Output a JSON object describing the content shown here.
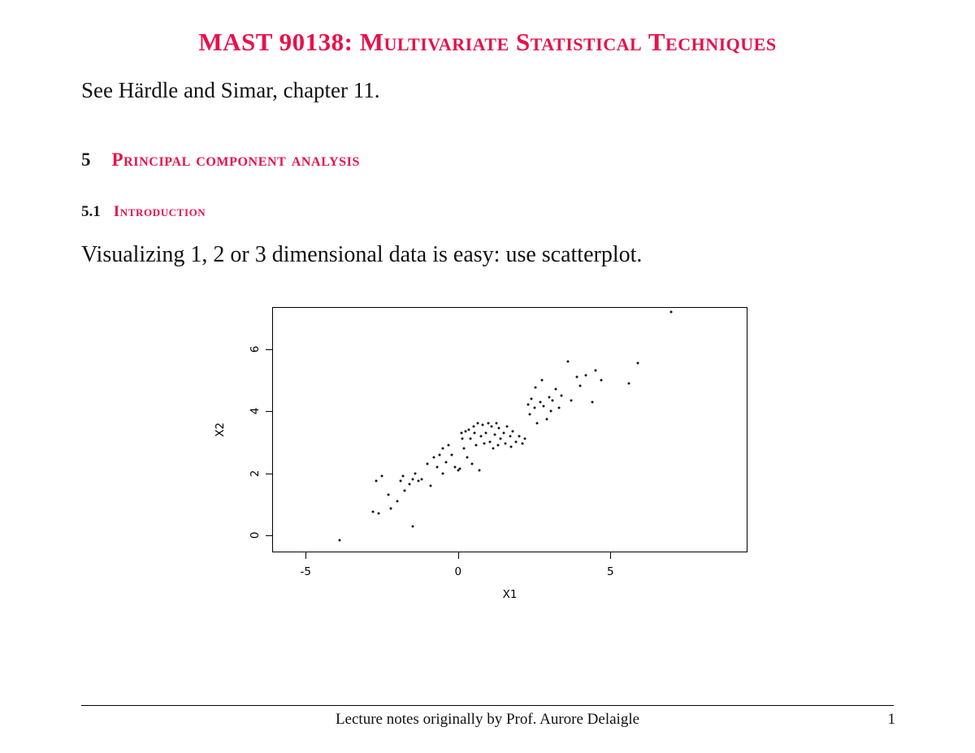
{
  "page": {
    "accent_color": "#e8114b",
    "title": "MAST 90138: Multivariate Statistical Techniques",
    "subtitle": "See Härdle and Simar, chapter 11.",
    "section": {
      "number": "5",
      "title": "Principal component analysis"
    },
    "subsection": {
      "number": "5.1",
      "title": "Introduction"
    },
    "paragraph": "Visualizing 1, 2 or 3 dimensional data is easy: use scatterplot.",
    "footer": {
      "text": "Lecture notes originally by Prof. Aurore Delaigle",
      "page_number": "1"
    }
  },
  "chart_data": {
    "type": "scatter",
    "title": "",
    "xlabel": "X1",
    "ylabel": "X2",
    "xlim": [
      -6.1,
      9.5
    ],
    "ylim": [
      -0.55,
      7.35
    ],
    "x_ticks": [
      -5,
      0,
      5
    ],
    "y_ticks": [
      0,
      2,
      4,
      6
    ],
    "grid": false,
    "legend": "none",
    "points": [
      [
        -3.9,
        -0.15
      ],
      [
        -2.8,
        0.75
      ],
      [
        -2.6,
        0.7
      ],
      [
        -2.7,
        1.75
      ],
      [
        -2.5,
        1.9
      ],
      [
        -2.3,
        1.3
      ],
      [
        -2.2,
        0.85
      ],
      [
        -2.0,
        1.1
      ],
      [
        -1.9,
        1.75
      ],
      [
        -1.8,
        1.9
      ],
      [
        -1.75,
        1.45
      ],
      [
        -1.6,
        1.65
      ],
      [
        -1.5,
        0.3
      ],
      [
        -1.5,
        1.8
      ],
      [
        -1.4,
        2.0
      ],
      [
        -1.3,
        1.75
      ],
      [
        -1.2,
        1.8
      ],
      [
        -1.0,
        2.3
      ],
      [
        -0.9,
        1.6
      ],
      [
        -0.8,
        2.5
      ],
      [
        -0.7,
        2.2
      ],
      [
        -0.6,
        2.6
      ],
      [
        -0.5,
        2.0
      ],
      [
        -0.5,
        2.8
      ],
      [
        -0.4,
        2.35
      ],
      [
        -0.3,
        2.9
      ],
      [
        -0.2,
        2.6
      ],
      [
        -0.1,
        2.2
      ],
      [
        0.0,
        2.1
      ],
      [
        0.05,
        2.15
      ],
      [
        0.1,
        3.3
      ],
      [
        0.15,
        3.1
      ],
      [
        0.2,
        2.8
      ],
      [
        0.25,
        3.35
      ],
      [
        0.3,
        2.5
      ],
      [
        0.35,
        3.4
      ],
      [
        0.4,
        3.1
      ],
      [
        0.45,
        2.3
      ],
      [
        0.5,
        3.5
      ],
      [
        0.55,
        3.3
      ],
      [
        0.6,
        2.9
      ],
      [
        0.65,
        3.6
      ],
      [
        0.7,
        2.1
      ],
      [
        0.75,
        3.2
      ],
      [
        0.8,
        3.55
      ],
      [
        0.85,
        2.95
      ],
      [
        0.9,
        3.3
      ],
      [
        1.0,
        3.6
      ],
      [
        1.05,
        3.0
      ],
      [
        1.1,
        3.5
      ],
      [
        1.15,
        2.8
      ],
      [
        1.2,
        3.25
      ],
      [
        1.25,
        3.6
      ],
      [
        1.3,
        2.9
      ],
      [
        1.35,
        3.45
      ],
      [
        1.4,
        3.1
      ],
      [
        1.5,
        3.3
      ],
      [
        1.55,
        2.95
      ],
      [
        1.6,
        3.5
      ],
      [
        1.7,
        3.2
      ],
      [
        1.75,
        2.85
      ],
      [
        1.8,
        3.35
      ],
      [
        1.9,
        3.0
      ],
      [
        2.0,
        3.2
      ],
      [
        2.1,
        2.95
      ],
      [
        2.2,
        3.1
      ],
      [
        2.3,
        4.2
      ],
      [
        2.35,
        3.9
      ],
      [
        2.4,
        4.4
      ],
      [
        2.5,
        4.1
      ],
      [
        2.55,
        4.75
      ],
      [
        2.6,
        3.6
      ],
      [
        2.7,
        4.3
      ],
      [
        2.75,
        5.0
      ],
      [
        2.8,
        4.15
      ],
      [
        2.9,
        3.75
      ],
      [
        3.0,
        4.45
      ],
      [
        3.05,
        4.0
      ],
      [
        3.1,
        4.35
      ],
      [
        3.2,
        4.7
      ],
      [
        3.3,
        4.1
      ],
      [
        3.4,
        4.5
      ],
      [
        3.6,
        5.6
      ],
      [
        3.7,
        4.35
      ],
      [
        3.9,
        5.1
      ],
      [
        4.0,
        4.8
      ],
      [
        4.2,
        5.15
      ],
      [
        4.4,
        4.3
      ],
      [
        4.5,
        5.3
      ],
      [
        4.7,
        5.0
      ],
      [
        5.6,
        4.9
      ],
      [
        5.9,
        5.55
      ],
      [
        7.0,
        7.2
      ]
    ]
  }
}
